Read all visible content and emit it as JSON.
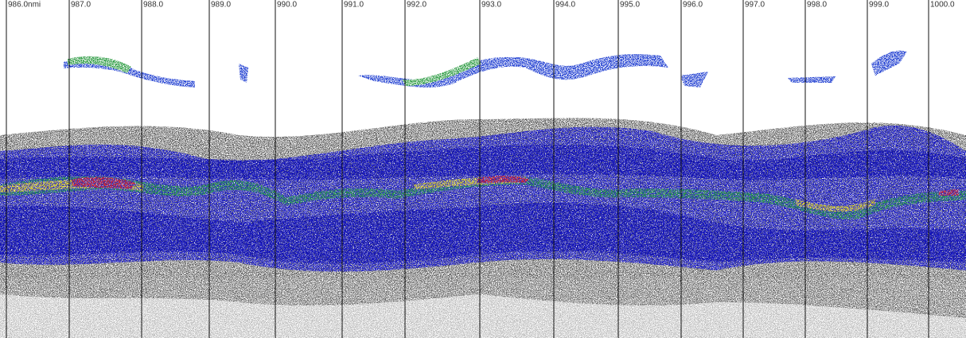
{
  "markers": [
    "986.0nmi",
    "987.0",
    "988.0",
    "989.0",
    "990.0",
    "991.0",
    "992.0",
    "993.0",
    "994.0",
    "995.0",
    "996.0",
    "997.0",
    "998.0",
    "999.0",
    "1000.0"
  ]
}
